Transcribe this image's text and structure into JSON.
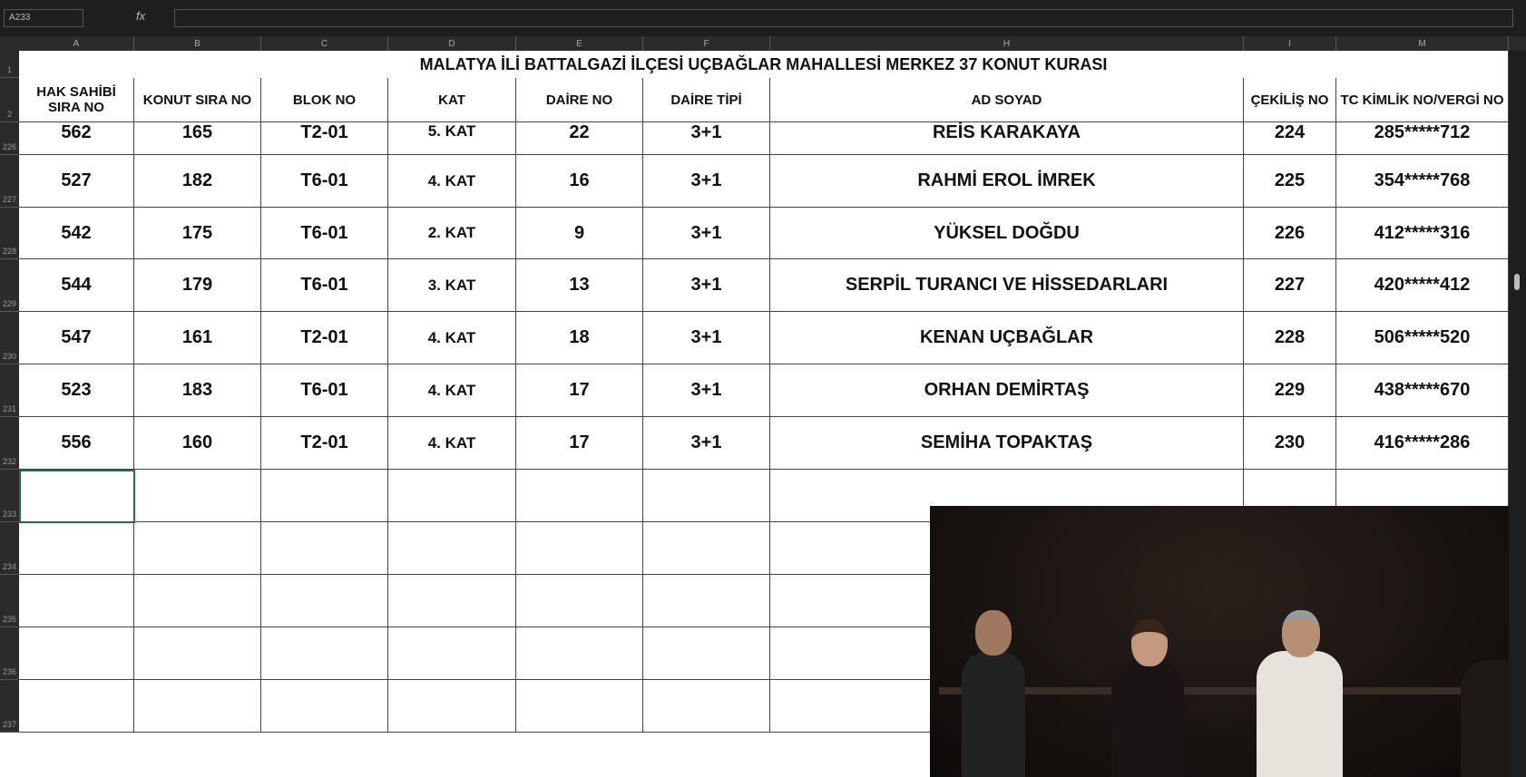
{
  "name_box": "A233",
  "function_label": "fx",
  "column_letters": [
    "A",
    "B",
    "C",
    "D",
    "E",
    "F",
    "H",
    "I",
    "M"
  ],
  "row_numbers": [
    "1",
    "2",
    "226",
    "227",
    "228",
    "229",
    "230",
    "231",
    "232",
    "233",
    "234",
    "235",
    "236",
    "237"
  ],
  "title": "MALATYA İLİ BATTALGAZİ İLÇESİ UÇBAĞLAR MAHALLESİ MERKEZ 37 KONUT KURASI",
  "headers": [
    "HAK SAHİBİ SIRA NO",
    "KONUT SIRA NO",
    "BLOK NO",
    "KAT",
    "DAİRE NO",
    "DAİRE TİPİ",
    "AD SOYAD",
    "ÇEKİLİŞ NO",
    "TC KİMLİK NO/VERGİ NO"
  ],
  "rows": [
    [
      "562",
      "165",
      "T2-01",
      "5. KAT",
      "22",
      "3+1",
      "REİS KARAKAYA",
      "224",
      "285*****712"
    ],
    [
      "527",
      "182",
      "T6-01",
      "4. KAT",
      "16",
      "3+1",
      "RAHMİ EROL İMREK",
      "225",
      "354*****768"
    ],
    [
      "542",
      "175",
      "T6-01",
      "2. KAT",
      "9",
      "3+1",
      "YÜKSEL DOĞDU",
      "226",
      "412*****316"
    ],
    [
      "544",
      "179",
      "T6-01",
      "3. KAT",
      "13",
      "3+1",
      "SERPİL TURANCI VE HİSSEDARLARI",
      "227",
      "420*****412"
    ],
    [
      "547",
      "161",
      "T2-01",
      "4. KAT",
      "18",
      "3+1",
      "KENAN UÇBAĞLAR",
      "228",
      "506*****520"
    ],
    [
      "523",
      "183",
      "T6-01",
      "4. KAT",
      "17",
      "3+1",
      "ORHAN DEMİRTAŞ",
      "229",
      "438*****670"
    ],
    [
      "556",
      "160",
      "T2-01",
      "4. KAT",
      "17",
      "3+1",
      "SEMİHA TOPAKTAŞ",
      "230",
      "416*****286"
    ]
  ]
}
